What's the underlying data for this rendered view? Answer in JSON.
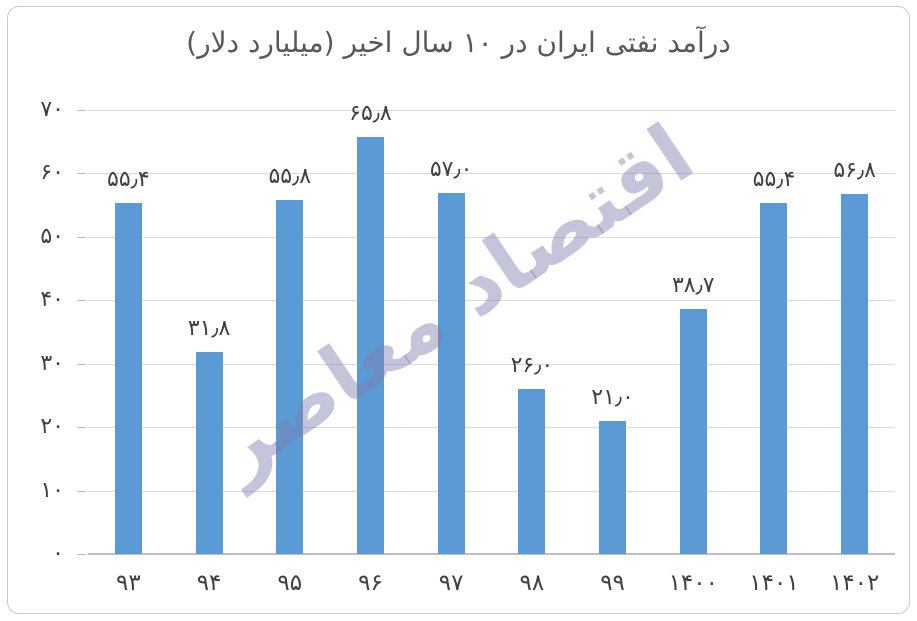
{
  "title": "درآمد نفتی ایران در ۱۰ سال اخیر (میلیارد دلار)",
  "watermark_text": "اقتصاد معاصر",
  "colors": {
    "bar": "#5b9bd5",
    "gridline": "#d9d9d9",
    "axis_line": "#bfbfbf",
    "title_text": "#595959",
    "axis_text": "#404040",
    "watermark": "#7d7daf",
    "border": "#c9c9c9"
  },
  "chart_data": {
    "type": "bar",
    "title": "درآمد نفتی ایران در ۱۰ سال اخیر (میلیارد دلار)",
    "categories": [
      "۹۳",
      "۹۴",
      "۹۵",
      "۹۶",
      "۹۷",
      "۹۸",
      "۹۹",
      "۱۴۰۰",
      "۱۴۰۱",
      "۱۴۰۲"
    ],
    "values": [
      55.4,
      31.8,
      55.8,
      65.8,
      57.0,
      26.0,
      21.0,
      38.7,
      55.4,
      56.8
    ],
    "value_labels": [
      "۵۵٫۴",
      "۳۱٫۸",
      "۵۵٫۸",
      "۶۵٫۸",
      "۵۷٫۰",
      "۲۶٫۰",
      "۲۱٫۰",
      "۳۸٫۷",
      "۵۵٫۴",
      "۵۶٫۸"
    ],
    "y_tick_labels": [
      "۷۰",
      "۶۰",
      "۵۰",
      "۴۰",
      "۳۰",
      "۲۰",
      "۱۰",
      "۰"
    ],
    "y_tick_values": [
      70,
      60,
      50,
      40,
      30,
      20,
      10,
      0
    ],
    "ylim": [
      0,
      70
    ],
    "xlabel": "",
    "ylabel": "",
    "grid": true,
    "legend_position": "none"
  }
}
